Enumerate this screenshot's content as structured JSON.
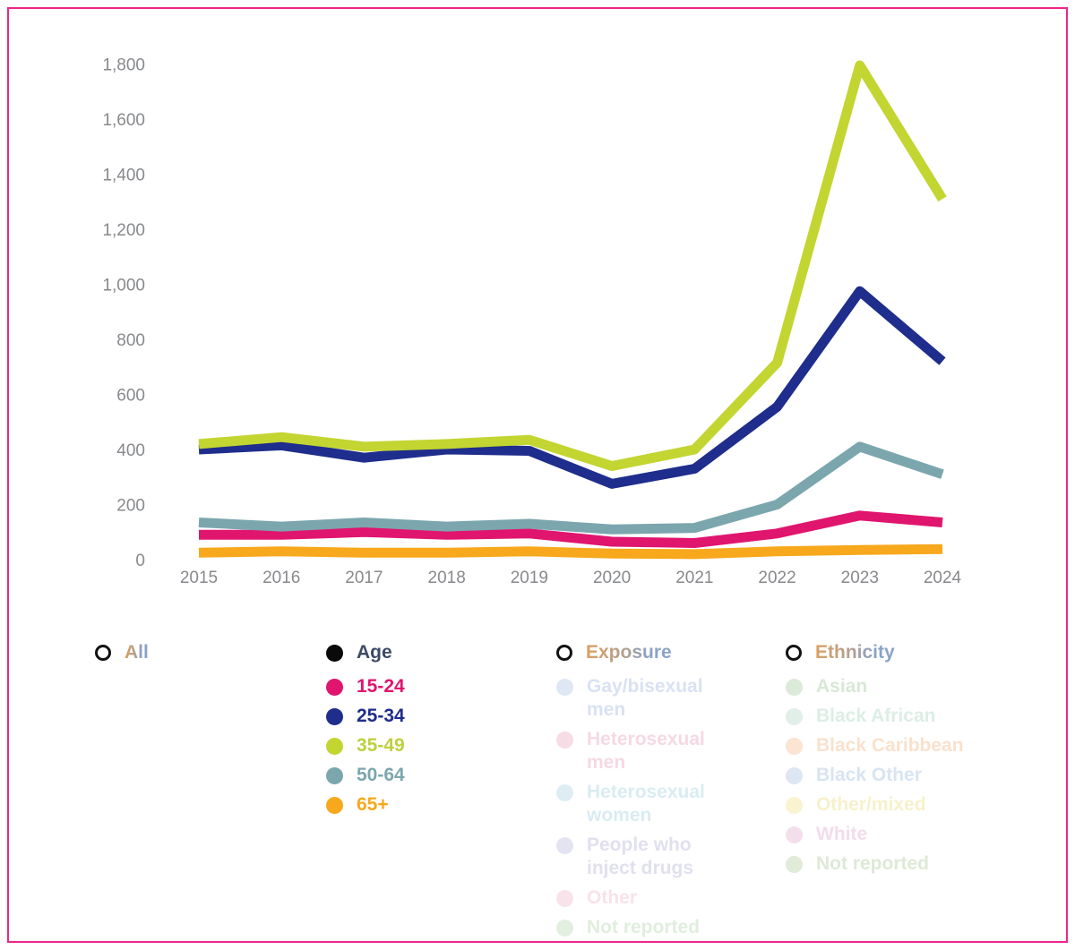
{
  "page": {
    "border_color": "#ec268c",
    "background": "#ffffff"
  },
  "chart_data": {
    "type": "line",
    "x": [
      2015,
      2016,
      2017,
      2018,
      2019,
      2020,
      2021,
      2022,
      2023,
      2024
    ],
    "series": [
      {
        "name": "15-24",
        "color": "#e0156e",
        "values": [
          90,
          90,
          100,
          90,
          95,
          65,
          60,
          95,
          160,
          135
        ]
      },
      {
        "name": "25-34",
        "color": "#1f2d8c",
        "values": [
          400,
          415,
          370,
          400,
          395,
          275,
          330,
          555,
          975,
          720
        ]
      },
      {
        "name": "35-49",
        "color": "#c3d531",
        "values": [
          420,
          445,
          410,
          420,
          435,
          340,
          400,
          715,
          1795,
          1310
        ]
      },
      {
        "name": "50-64",
        "color": "#7ba6ae",
        "values": [
          135,
          120,
          135,
          120,
          130,
          110,
          115,
          200,
          410,
          310
        ]
      },
      {
        "name": "65+",
        "color": "#f7a81c",
        "values": [
          25,
          30,
          25,
          25,
          30,
          22,
          20,
          30,
          35,
          38
        ]
      }
    ],
    "draw_order": [
      "15-24",
      "50-64",
      "25-34",
      "35-49",
      "65+"
    ],
    "title": "",
    "xlabel": "",
    "ylabel": "",
    "ylim": [
      0,
      1800
    ],
    "ytick_labels": [
      "0",
      "200",
      "400",
      "600",
      "800",
      "1,000",
      "1,200",
      "1,400",
      "1,600",
      "1,800"
    ],
    "xtick_labels": [
      "2015",
      "2016",
      "2017",
      "2018",
      "2019",
      "2020",
      "2021",
      "2022",
      "2023",
      "2024"
    ],
    "grid": false,
    "axis_lines": false,
    "tick_color": "#87898c",
    "legend_position": "bottom"
  },
  "legend": {
    "groups": [
      {
        "id": "all",
        "label": "All",
        "selected": false,
        "items": []
      },
      {
        "id": "age",
        "label": "Age",
        "selected": true,
        "items": [
          {
            "label": "15-24",
            "dot_color": "#e0156e",
            "text_color": "#e0156e",
            "disabled": false
          },
          {
            "label": "25-34",
            "dot_color": "#1f2d8c",
            "text_color": "#1f2d8c",
            "disabled": false
          },
          {
            "label": "35-49",
            "dot_color": "#c3d531",
            "text_color": "#bdd13f",
            "disabled": false
          },
          {
            "label": "50-64",
            "dot_color": "#7ba6ae",
            "text_color": "#7ba6ae",
            "disabled": false
          },
          {
            "label": "65+",
            "dot_color": "#f7a81c",
            "text_color": "#f7a81c",
            "disabled": false
          }
        ]
      },
      {
        "id": "exposure",
        "label": "Exposure",
        "selected": false,
        "items": [
          {
            "label": "Gay/bisexual men",
            "dot_color": "#dfe6f4",
            "text_color": "#d9e2f3",
            "disabled": true
          },
          {
            "label": "Heterosexual men",
            "dot_color": "#f6dce5",
            "text_color": "#f6d9e2",
            "disabled": true
          },
          {
            "label": "Heterosexual women",
            "dot_color": "#ddedf3",
            "text_color": "#d9ecf2",
            "disabled": true
          },
          {
            "label": "People who inject drugs",
            "dot_color": "#e4e3f1",
            "text_color": "#e1e0ef",
            "disabled": true
          },
          {
            "label": "Other",
            "dot_color": "#f8e3eb",
            "text_color": "#f8e2ea",
            "disabled": true
          },
          {
            "label": "Not reported",
            "dot_color": "#e3efe0",
            "text_color": "#e0eedd",
            "disabled": true
          }
        ]
      },
      {
        "id": "ethnicity",
        "label": "Ethnicity",
        "selected": false,
        "items": [
          {
            "label": "Asian",
            "dot_color": "#dceada",
            "text_color": "#d8e8d5",
            "disabled": true
          },
          {
            "label": "Black African",
            "dot_color": "#e0efe8",
            "text_color": "#dceee6",
            "disabled": true
          },
          {
            "label": "Black Caribbean",
            "dot_color": "#fae4d2",
            "text_color": "#f9e1cd",
            "disabled": true
          },
          {
            "label": "Black Other",
            "dot_color": "#dde7f3",
            "text_color": "#d8e4f1",
            "disabled": true
          },
          {
            "label": "Other/mixed",
            "dot_color": "#f9f3d0",
            "text_color": "#f7f1ca",
            "disabled": true
          },
          {
            "label": "White",
            "dot_color": "#f3dfec",
            "text_color": "#f2dcea",
            "disabled": true
          },
          {
            "label": "Not reported",
            "dot_color": "#e0ebd9",
            "text_color": "#dde9d6",
            "disabled": true
          }
        ]
      }
    ]
  }
}
